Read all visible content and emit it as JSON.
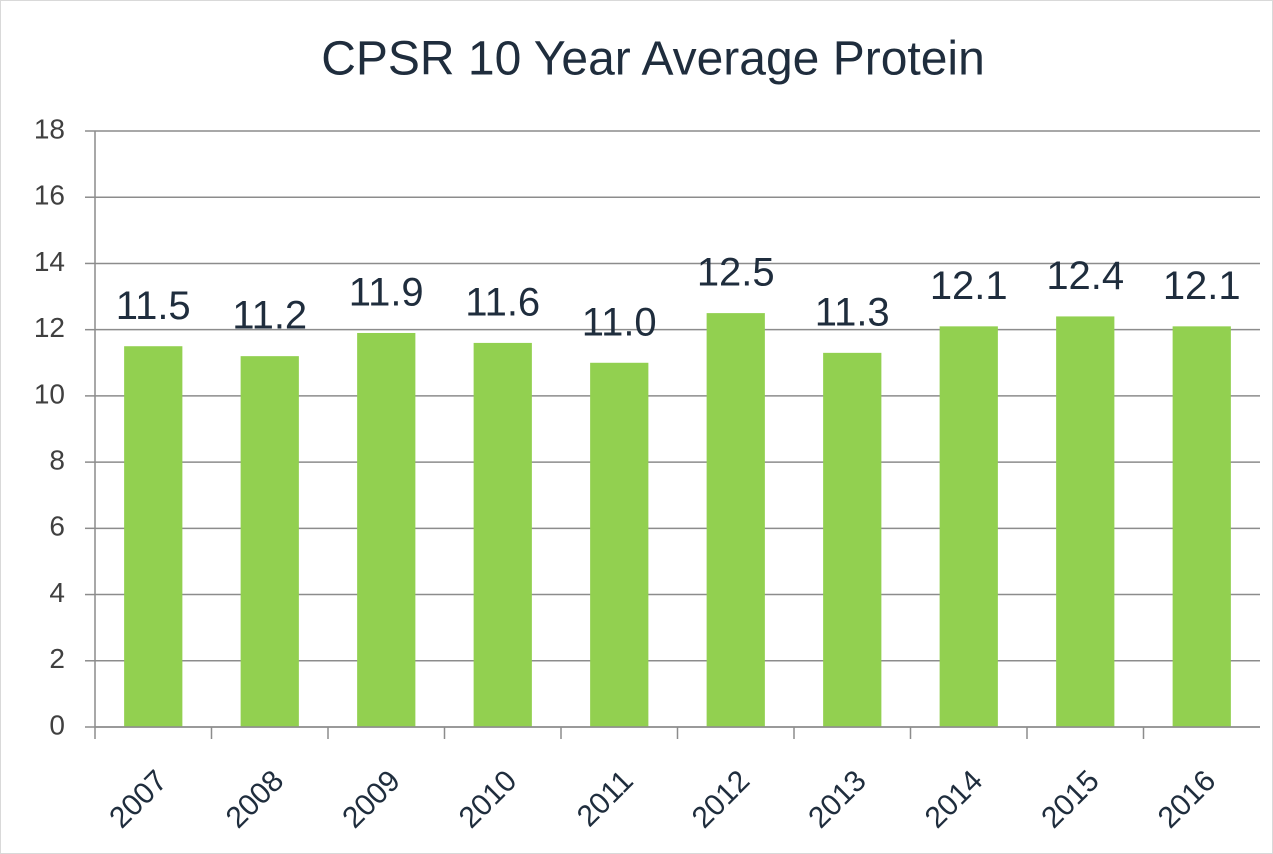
{
  "chart_data": {
    "type": "bar",
    "title": "CPSR 10 Year Average Protein",
    "categories": [
      "2007",
      "2008",
      "2009",
      "2010",
      "2011",
      "2012",
      "2013",
      "2014",
      "2015",
      "2016"
    ],
    "values": [
      11.5,
      11.2,
      11.9,
      11.6,
      11.0,
      12.5,
      11.3,
      12.1,
      12.4,
      12.1
    ],
    "value_labels": [
      "11.5",
      "11.2",
      "11.9",
      "11.6",
      "11.0",
      "12.5",
      "11.3",
      "12.1",
      "12.4",
      "12.1"
    ],
    "color": "#92d050",
    "ylim": [
      0,
      18
    ],
    "yticks": [
      0,
      2,
      4,
      6,
      8,
      10,
      12,
      14,
      16,
      18
    ],
    "grid": true
  }
}
